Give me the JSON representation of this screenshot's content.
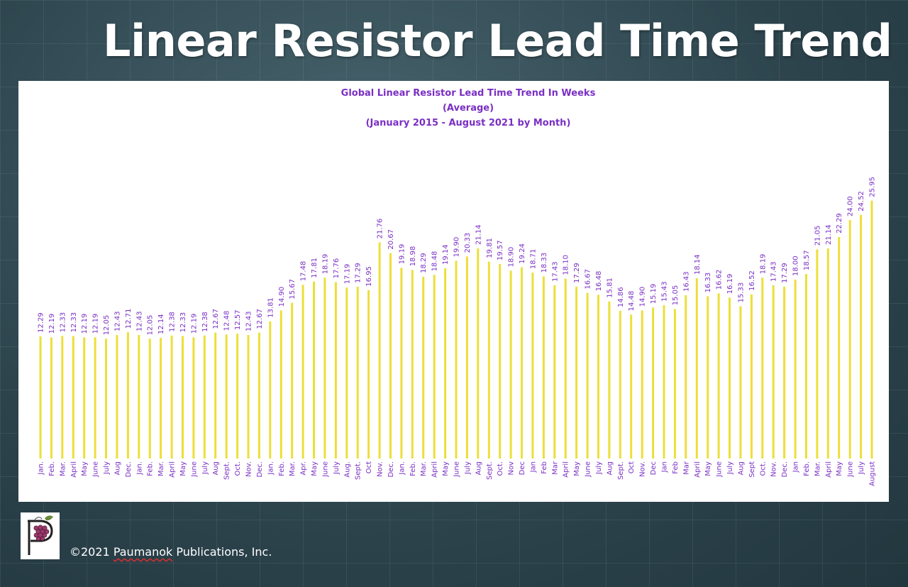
{
  "slide": {
    "title": "Linear Resistor Lead Time Trend",
    "copyright_prefix": "©2021 ",
    "copyright_brand": "Paumanok",
    "copyright_suffix": " Publications, Inc.",
    "logo_icon": "grapes-letter-p-logo"
  },
  "colors": {
    "bar": "#ecdf3a",
    "text": "#7a2fc4"
  },
  "chart_data": {
    "type": "bar",
    "title": "Global Linear Resistor Lead Time Trend In Weeks",
    "subtitle": "(Average)",
    "subtitle2": "(January 2015 - August 2021 by Month)",
    "xlabel": "",
    "ylabel": "",
    "ylim": [
      0,
      26
    ],
    "grid": false,
    "categories": [
      "Jan.",
      "Feb.",
      "Mar.",
      "April",
      "May",
      "June",
      "July",
      "Aug",
      "Dec.",
      "Jan.",
      "Feb.",
      "Mar.",
      "April",
      "May",
      "June",
      "July",
      "Aug",
      "Sept.",
      "Oct.",
      "Nov.",
      "Dec.",
      "Jan.",
      "Feb.",
      "Mar.",
      "Apr.",
      "May",
      "June",
      "July",
      "Aug.",
      "Sept.",
      "Oct",
      "Nov.",
      "Dec.",
      "Jan.",
      "Feb.",
      "Mar.",
      "April",
      "May",
      "June",
      "July",
      "Aug",
      "Sept.",
      "Oct.",
      "Nov",
      "Dec",
      "Jan",
      "Feb",
      "Mar",
      "April",
      "May",
      "June",
      "July",
      "Aug",
      "Sept.",
      "Oct",
      "Nov.",
      "Dec",
      "Jan",
      "Feb",
      "Mar",
      "April",
      "May",
      "June",
      "July",
      "Aug",
      "Sept",
      "Oct.",
      "Nov.",
      "Dec.",
      "Jan",
      "Feb.",
      "Mar.",
      "April",
      "May",
      "June",
      "July",
      "August"
    ],
    "values": [
      12.29,
      12.19,
      12.33,
      12.33,
      12.19,
      12.19,
      12.05,
      12.43,
      12.71,
      12.43,
      12.05,
      12.14,
      12.38,
      12.33,
      12.19,
      12.38,
      12.67,
      12.48,
      12.57,
      12.43,
      12.67,
      13.81,
      14.9,
      15.67,
      17.48,
      17.81,
      18.19,
      17.76,
      17.19,
      17.29,
      16.95,
      21.76,
      20.67,
      19.19,
      18.98,
      18.29,
      18.48,
      19.14,
      19.9,
      20.33,
      21.14,
      19.81,
      19.57,
      18.9,
      19.24,
      18.71,
      18.33,
      17.43,
      18.1,
      17.29,
      16.67,
      16.48,
      15.81,
      14.86,
      14.48,
      14.9,
      15.19,
      15.43,
      15.05,
      16.43,
      18.14,
      16.33,
      16.62,
      16.19,
      15.33,
      16.52,
      18.19,
      17.43,
      17.29,
      18.0,
      18.57,
      21.05,
      21.14,
      22.29,
      24.0,
      24.52,
      25.95
    ],
    "value_labels": [
      "12.29",
      "12.19",
      "12.33",
      "12.33",
      "12.19",
      "12.19",
      "12.05",
      "12.43",
      "12.71",
      "12.43",
      "12.05",
      "12.14",
      "12.38",
      "12.33",
      "12.19",
      "12.38",
      "12.67",
      "12.48",
      "12.57",
      "12.43",
      "12.67",
      "13.81",
      "14.90",
      "15.67",
      "17.48",
      "17.81",
      "18.19",
      "17.76",
      "17.19",
      "17.29",
      "16.95",
      "21.76",
      "20.67",
      "19.19",
      "18.98",
      "18.29",
      "18.48",
      "19.14",
      "19.90",
      "20.33",
      "21.14",
      "19.81",
      "19.57",
      "18.90",
      "19.24",
      "18.71",
      "18.33",
      "17.43",
      "18.10",
      "17.29",
      "16.67",
      "16.48",
      "15.81",
      "14.86",
      "14.48",
      "14.90",
      "15.19",
      "15.43",
      "15.05",
      "16.43",
      "18.14",
      "16.33",
      "16.62",
      "16.19",
      "15.33",
      "16.52",
      "18.19",
      "17.43",
      "17.29",
      "18.00",
      "18.57",
      "21.05",
      "21.14",
      "22.29",
      "24.00",
      "24.52",
      "25.95"
    ]
  }
}
